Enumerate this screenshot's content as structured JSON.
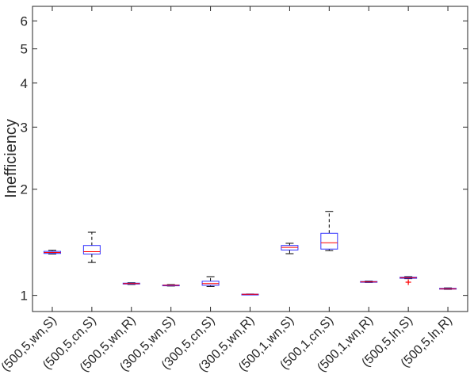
{
  "chart_data": {
    "type": "boxplot",
    "ylabel": "Inefficiency",
    "yscale": "log",
    "ylim": [
      0.9,
      6.6
    ],
    "yticks": [
      1,
      2,
      3,
      4,
      5,
      6
    ],
    "grid": false,
    "colors": {
      "box": "#3333ff",
      "median": "#ff0000",
      "whisker": "#000000",
      "outlier": "#ff0000",
      "axis": "#262626"
    },
    "categories": [
      "(500,5,wn,S)",
      "(500,5,cn,S)",
      "(500,5,wn,R)",
      "(300,5,wn,S)",
      "(300,5,cn,S)",
      "(300,5,wn,R)",
      "(500,1,wn,S)",
      "(500,1,cn,S)",
      "(500,1,wn,R)",
      "(500,5,ln,S)",
      "(500,5,ln,R)"
    ],
    "boxes": [
      {
        "whisker_low": 1.31,
        "q1": 1.315,
        "median": 1.323,
        "q3": 1.333,
        "whisker_high": 1.342,
        "outliers": []
      },
      {
        "whisker_low": 1.24,
        "q1": 1.31,
        "median": 1.33,
        "q3": 1.385,
        "whisker_high": 1.51,
        "outliers": []
      },
      {
        "whisker_low": 1.074,
        "q1": 1.077,
        "median": 1.08,
        "q3": 1.083,
        "whisker_high": 1.086,
        "outliers": []
      },
      {
        "whisker_low": 1.063,
        "q1": 1.066,
        "median": 1.068,
        "q3": 1.07,
        "whisker_high": 1.073,
        "outliers": []
      },
      {
        "whisker_low": 1.06,
        "q1": 1.068,
        "median": 1.08,
        "q3": 1.097,
        "whisker_high": 1.13,
        "outliers": []
      },
      {
        "whisker_low": 1.005,
        "q1": 1.006,
        "median": 1.007,
        "q3": 1.008,
        "whisker_high": 1.009,
        "outliers": []
      },
      {
        "whisker_low": 1.313,
        "q1": 1.345,
        "median": 1.368,
        "q3": 1.385,
        "whisker_high": 1.405,
        "outliers": []
      },
      {
        "whisker_low": 1.34,
        "q1": 1.353,
        "median": 1.41,
        "q3": 1.5,
        "whisker_high": 1.73,
        "outliers": []
      },
      {
        "whisker_low": 1.088,
        "q1": 1.09,
        "median": 1.092,
        "q3": 1.095,
        "whisker_high": 1.098,
        "outliers": []
      },
      {
        "whisker_low": 1.115,
        "q1": 1.118,
        "median": 1.122,
        "q3": 1.126,
        "whisker_high": 1.13,
        "outliers": [
          1.09
        ]
      },
      {
        "whisker_low": 1.04,
        "q1": 1.042,
        "median": 1.044,
        "q3": 1.047,
        "whisker_high": 1.05,
        "outliers": []
      }
    ]
  }
}
